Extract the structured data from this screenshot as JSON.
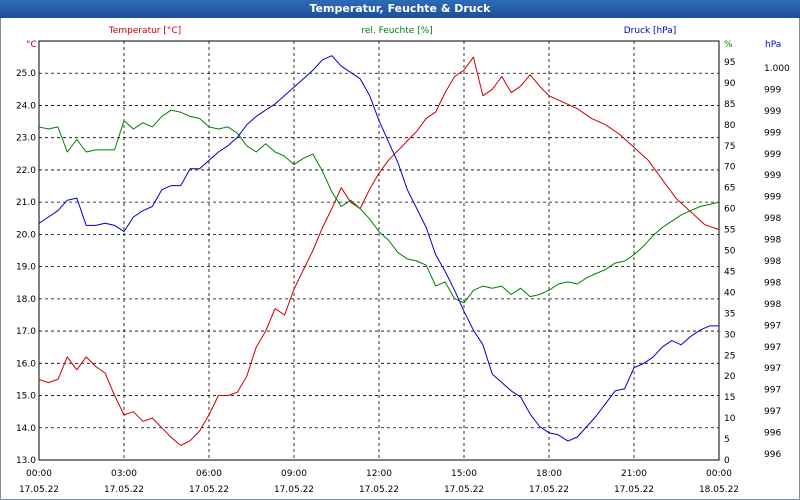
{
  "window": {
    "title": "Temperatur, Feuchte & Druck"
  },
  "colors": {
    "temperature": "#cc0000",
    "humidity": "#008000",
    "pressure": "#0000cc",
    "grid": "#000000",
    "text": "#000000"
  },
  "chart_data": {
    "type": "line",
    "title": "Temperatur, Feuchte & Druck",
    "grid": true,
    "x_range": [
      "2022-05-17 00:00",
      "2022-05-18 00:00"
    ],
    "x_ticks": [
      {
        "time": "00:00",
        "date": "17.05.22"
      },
      {
        "time": "03:00",
        "date": "17.05.22"
      },
      {
        "time": "06:00",
        "date": "17.05.22"
      },
      {
        "time": "09:00",
        "date": "17.05.22"
      },
      {
        "time": "12:00",
        "date": "17.05.22"
      },
      {
        "time": "15:00",
        "date": "17.05.22"
      },
      {
        "time": "18:00",
        "date": "17.05.22"
      },
      {
        "time": "21:00",
        "date": "17.05.22"
      },
      {
        "time": "00:00",
        "date": "18.05.22"
      }
    ],
    "axes": {
      "temperature": {
        "label": "Temperatur [°C]",
        "unit_label": "°C",
        "range": [
          13.0,
          26.0
        ],
        "ticks": [
          "13.0",
          "14.0",
          "15.0",
          "16.0",
          "17.0",
          "18.0",
          "19.0",
          "20.0",
          "21.0",
          "22.0",
          "23.0",
          "24.0",
          "25.0"
        ]
      },
      "humidity": {
        "label": "rel. Feuchte [%]",
        "unit_label": "%",
        "range": [
          0,
          100
        ],
        "ticks": [
          "0",
          "5",
          "10",
          "15",
          "20",
          "25",
          "30",
          "35",
          "40",
          "45",
          "50",
          "55",
          "60",
          "65",
          "70",
          "75",
          "80",
          "85",
          "90",
          "95"
        ]
      },
      "pressure": {
        "label": "Druck [hPa]",
        "unit_label": "hPa",
        "ticks": [
          "996",
          "996",
          "997",
          "997",
          "997",
          "997",
          "997",
          "998",
          "998",
          "998",
          "998",
          "998",
          "999",
          "999",
          "999",
          "999",
          "999",
          "999",
          "1.000"
        ]
      }
    },
    "series": [
      {
        "name": "Temperatur [°C]",
        "axis": "temperature",
        "points": [
          [
            "00:00",
            15.5
          ],
          [
            "00:20",
            15.4
          ],
          [
            "00:40",
            15.5
          ],
          [
            "01:00",
            16.2
          ],
          [
            "01:20",
            15.8
          ],
          [
            "01:40",
            16.2
          ],
          [
            "02:00",
            15.9
          ],
          [
            "02:20",
            15.7
          ],
          [
            "02:40",
            15.0
          ],
          [
            "03:00",
            14.4
          ],
          [
            "03:20",
            14.5
          ],
          [
            "03:40",
            14.2
          ],
          [
            "04:00",
            14.3
          ],
          [
            "04:20",
            14.0
          ],
          [
            "04:40",
            13.7
          ],
          [
            "05:00",
            13.45
          ],
          [
            "05:20",
            13.6
          ],
          [
            "05:40",
            13.9
          ],
          [
            "06:00",
            14.4
          ],
          [
            "06:20",
            15.0
          ],
          [
            "06:40",
            15.0
          ],
          [
            "07:00",
            15.1
          ],
          [
            "07:20",
            15.6
          ],
          [
            "07:40",
            16.5
          ],
          [
            "08:00",
            17.0
          ],
          [
            "08:20",
            17.7
          ],
          [
            "08:40",
            17.5
          ],
          [
            "09:00",
            18.3
          ],
          [
            "09:20",
            18.9
          ],
          [
            "09:40",
            19.5
          ],
          [
            "10:00",
            20.2
          ],
          [
            "10:20",
            20.8
          ],
          [
            "10:40",
            21.45
          ],
          [
            "11:00",
            21.0
          ],
          [
            "11:20",
            20.8
          ],
          [
            "11:40",
            21.4
          ],
          [
            "12:00",
            21.9
          ],
          [
            "12:20",
            22.3
          ],
          [
            "12:40",
            22.6
          ],
          [
            "13:00",
            22.9
          ],
          [
            "13:20",
            23.2
          ],
          [
            "13:40",
            23.6
          ],
          [
            "14:00",
            23.8
          ],
          [
            "14:20",
            24.4
          ],
          [
            "14:40",
            24.9
          ],
          [
            "15:00",
            25.1
          ],
          [
            "15:20",
            25.5
          ],
          [
            "15:40",
            24.3
          ],
          [
            "16:00",
            24.5
          ],
          [
            "16:20",
            24.9
          ],
          [
            "16:40",
            24.4
          ],
          [
            "17:00",
            24.6
          ],
          [
            "17:20",
            24.95
          ],
          [
            "17:40",
            24.6
          ],
          [
            "18:00",
            24.3
          ],
          [
            "18:30",
            24.1
          ],
          [
            "19:00",
            23.9
          ],
          [
            "19:30",
            23.6
          ],
          [
            "20:00",
            23.4
          ],
          [
            "20:30",
            23.1
          ],
          [
            "21:00",
            22.7
          ],
          [
            "21:30",
            22.3
          ],
          [
            "22:00",
            21.7
          ],
          [
            "22:30",
            21.1
          ],
          [
            "23:00",
            20.7
          ],
          [
            "23:30",
            20.3
          ],
          [
            "24:00",
            20.15
          ]
        ]
      },
      {
        "name": "rel. Feuchte [%]",
        "axis": "humidity",
        "points": [
          [
            "00:00",
            79.5
          ],
          [
            "00:20",
            79.0
          ],
          [
            "00:40",
            79.5
          ],
          [
            "01:00",
            73.5
          ],
          [
            "01:20",
            76.5
          ],
          [
            "01:40",
            73.5
          ],
          [
            "02:00",
            74.0
          ],
          [
            "02:20",
            74.0
          ],
          [
            "02:40",
            74.0
          ],
          [
            "03:00",
            81.0
          ],
          [
            "03:20",
            79.0
          ],
          [
            "03:40",
            80.5
          ],
          [
            "04:00",
            79.5
          ],
          [
            "04:20",
            82.0
          ],
          [
            "04:40",
            83.5
          ],
          [
            "05:00",
            83.0
          ],
          [
            "05:20",
            82.0
          ],
          [
            "05:40",
            81.5
          ],
          [
            "06:00",
            79.5
          ],
          [
            "06:20",
            79.0
          ],
          [
            "06:40",
            79.5
          ],
          [
            "07:00",
            78.0
          ],
          [
            "07:20",
            75.0
          ],
          [
            "07:40",
            73.5
          ],
          [
            "08:00",
            75.5
          ],
          [
            "08:20",
            73.5
          ],
          [
            "08:40",
            72.5
          ],
          [
            "09:00",
            70.5
          ],
          [
            "09:20",
            72.0
          ],
          [
            "09:40",
            73.0
          ],
          [
            "10:00",
            69.0
          ],
          [
            "10:20",
            64.0
          ],
          [
            "10:40",
            60.5
          ],
          [
            "11:00",
            62.0
          ],
          [
            "11:20",
            60.0
          ],
          [
            "11:40",
            57.5
          ],
          [
            "12:00",
            54.5
          ],
          [
            "12:20",
            52.5
          ],
          [
            "12:40",
            49.5
          ],
          [
            "13:00",
            48.0
          ],
          [
            "13:20",
            47.5
          ],
          [
            "13:40",
            46.5
          ],
          [
            "14:00",
            41.5
          ],
          [
            "14:20",
            42.5
          ],
          [
            "14:40",
            38.5
          ],
          [
            "15:00",
            37.5
          ],
          [
            "15:20",
            40.5
          ],
          [
            "15:40",
            41.5
          ],
          [
            "16:00",
            41.0
          ],
          [
            "16:20",
            41.5
          ],
          [
            "16:40",
            39.5
          ],
          [
            "17:00",
            41.0
          ],
          [
            "17:20",
            39.0
          ],
          [
            "17:40",
            39.5
          ],
          [
            "18:00",
            40.5
          ],
          [
            "18:20",
            42.0
          ],
          [
            "18:40",
            42.5
          ],
          [
            "19:00",
            42.0
          ],
          [
            "19:20",
            43.5
          ],
          [
            "19:40",
            44.5
          ],
          [
            "20:00",
            45.5
          ],
          [
            "20:20",
            47.0
          ],
          [
            "20:40",
            47.5
          ],
          [
            "21:00",
            49.0
          ],
          [
            "21:20",
            51.0
          ],
          [
            "21:40",
            53.5
          ],
          [
            "22:00",
            55.5
          ],
          [
            "22:20",
            57.0
          ],
          [
            "22:40",
            58.5
          ],
          [
            "23:00",
            59.5
          ],
          [
            "23:20",
            60.5
          ],
          [
            "23:40",
            61.0
          ],
          [
            "24:00",
            61.5
          ]
        ]
      },
      {
        "name": "Druck [hPa]",
        "axis": "pressure",
        "points": [
          [
            "00:00",
            0.565
          ],
          [
            "00:20",
            0.58
          ],
          [
            "00:40",
            0.595
          ],
          [
            "01:00",
            0.62
          ],
          [
            "01:20",
            0.625
          ],
          [
            "01:40",
            0.56
          ],
          [
            "02:00",
            0.56
          ],
          [
            "02:20",
            0.565
          ],
          [
            "02:40",
            0.56
          ],
          [
            "03:00",
            0.545
          ],
          [
            "03:20",
            0.58
          ],
          [
            "03:40",
            0.595
          ],
          [
            "04:00",
            0.605
          ],
          [
            "04:20",
            0.645
          ],
          [
            "04:40",
            0.655
          ],
          [
            "05:00",
            0.655
          ],
          [
            "05:20",
            0.695
          ],
          [
            "05:40",
            0.695
          ],
          [
            "06:00",
            0.715
          ],
          [
            "06:20",
            0.735
          ],
          [
            "06:40",
            0.75
          ],
          [
            "07:00",
            0.77
          ],
          [
            "07:20",
            0.8
          ],
          [
            "07:40",
            0.82
          ],
          [
            "08:00",
            0.835
          ],
          [
            "08:20",
            0.85
          ],
          [
            "08:40",
            0.87
          ],
          [
            "09:00",
            0.89
          ],
          [
            "09:20",
            0.91
          ],
          [
            "09:40",
            0.93
          ],
          [
            "10:00",
            0.955
          ],
          [
            "10:20",
            0.965
          ],
          [
            "10:40",
            0.94
          ],
          [
            "11:00",
            0.925
          ],
          [
            "11:20",
            0.91
          ],
          [
            "11:40",
            0.87
          ],
          [
            "12:00",
            0.81
          ],
          [
            "12:20",
            0.76
          ],
          [
            "12:40",
            0.71
          ],
          [
            "13:00",
            0.645
          ],
          [
            "13:20",
            0.6
          ],
          [
            "13:40",
            0.555
          ],
          [
            "14:00",
            0.49
          ],
          [
            "14:20",
            0.45
          ],
          [
            "14:40",
            0.405
          ],
          [
            "15:00",
            0.355
          ],
          [
            "15:20",
            0.31
          ],
          [
            "15:40",
            0.275
          ],
          [
            "16:00",
            0.205
          ],
          [
            "16:20",
            0.185
          ],
          [
            "16:40",
            0.165
          ],
          [
            "17:00",
            0.15
          ],
          [
            "17:20",
            0.11
          ],
          [
            "17:40",
            0.08
          ],
          [
            "18:00",
            0.065
          ],
          [
            "18:20",
            0.06
          ],
          [
            "18:40",
            0.045
          ],
          [
            "19:00",
            0.055
          ],
          [
            "19:20",
            0.08
          ],
          [
            "19:40",
            0.105
          ],
          [
            "20:00",
            0.135
          ],
          [
            "20:20",
            0.165
          ],
          [
            "20:40",
            0.17
          ],
          [
            "21:00",
            0.22
          ],
          [
            "21:20",
            0.23
          ],
          [
            "21:40",
            0.245
          ],
          [
            "22:00",
            0.27
          ],
          [
            "22:20",
            0.285
          ],
          [
            "22:40",
            0.275
          ],
          [
            "23:00",
            0.295
          ],
          [
            "23:20",
            0.31
          ],
          [
            "23:40",
            0.32
          ],
          [
            "24:00",
            0.32
          ]
        ]
      }
    ]
  }
}
